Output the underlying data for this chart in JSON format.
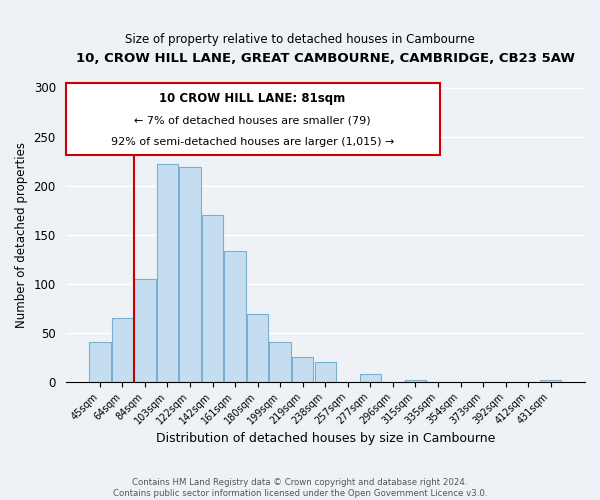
{
  "title": "10, CROW HILL LANE, GREAT CAMBOURNE, CAMBRIDGE, CB23 5AW",
  "subtitle": "Size of property relative to detached houses in Cambourne",
  "xlabel": "Distribution of detached houses by size in Cambourne",
  "ylabel": "Number of detached properties",
  "footer_line1": "Contains HM Land Registry data © Crown copyright and database right 2024.",
  "footer_line2": "Contains public sector information licensed under the Open Government Licence v3.0.",
  "categories": [
    "45sqm",
    "64sqm",
    "84sqm",
    "103sqm",
    "122sqm",
    "142sqm",
    "161sqm",
    "180sqm",
    "199sqm",
    "219sqm",
    "238sqm",
    "257sqm",
    "277sqm",
    "296sqm",
    "315sqm",
    "335sqm",
    "354sqm",
    "373sqm",
    "392sqm",
    "412sqm",
    "431sqm"
  ],
  "values": [
    40,
    65,
    105,
    222,
    219,
    170,
    133,
    69,
    40,
    25,
    20,
    0,
    8,
    0,
    2,
    0,
    0,
    0,
    0,
    0,
    2
  ],
  "bar_color": "#c5ddf0",
  "bar_edge_color": "#7aaecc",
  "vline_x_index": 2,
  "vline_color": "#cc0000",
  "annotation_title": "10 CROW HILL LANE: 81sqm",
  "annotation_line1": "← 7% of detached houses are smaller (79)",
  "annotation_line2": "92% of semi-detached houses are larger (1,015) →",
  "annotation_box_color": "#ffffff",
  "annotation_box_edge_color": "#cc0000",
  "ylim": [
    0,
    300
  ],
  "yticks": [
    0,
    50,
    100,
    150,
    200,
    250,
    300
  ],
  "background_color": "#eef2f7"
}
